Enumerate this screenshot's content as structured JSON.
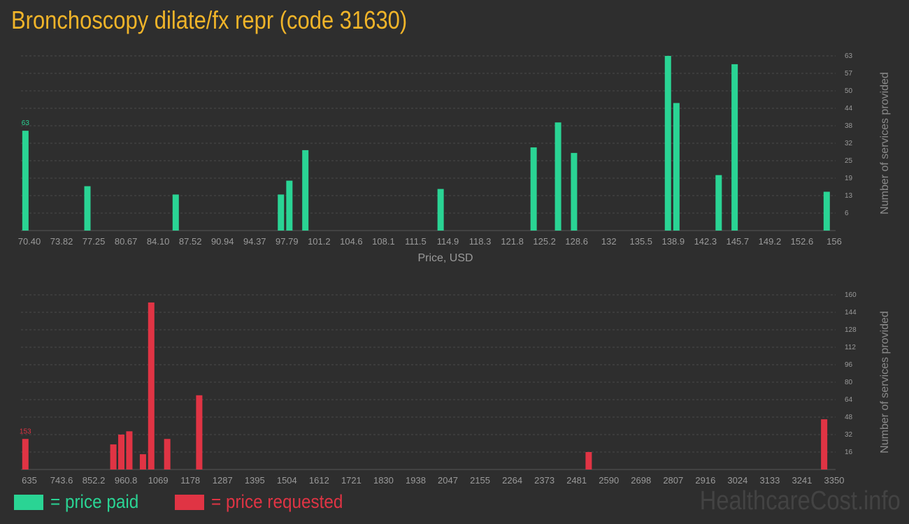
{
  "title": "Bronchoscopy dilate/fx repr (code 31630)",
  "legend": {
    "paid_label": "= price paid",
    "requested_label": "= price requested"
  },
  "watermark": "HealthcareCost.info",
  "colors": {
    "background": "#2e2e2e",
    "title": "#f0b429",
    "paid": "#2ad494",
    "requested": "#e03444",
    "axis_text": "#9a9a9a",
    "grid": "#4a4a4a"
  },
  "chart_data": [
    {
      "type": "bar",
      "series_name": "price paid",
      "color": "#2ad494",
      "xlabel": "Price, USD",
      "ylabel": "Number of services provided",
      "xlim": [
        70.4,
        156
      ],
      "ylim": [
        0,
        63
      ],
      "x_ticks": [
        "70.40",
        "73.82",
        "77.25",
        "80.67",
        "84.10",
        "87.52",
        "90.94",
        "94.37",
        "97.79",
        "101.2",
        "104.6",
        "108.1",
        "111.5",
        "114.9",
        "118.3",
        "121.8",
        "125.2",
        "128.6",
        "132",
        "135.5",
        "138.9",
        "142.3",
        "145.7",
        "149.2",
        "152.6",
        "156"
      ],
      "y_ticks": [
        "6",
        "13",
        "19",
        "25",
        "32",
        "38",
        "44",
        "50",
        "57",
        "63"
      ],
      "peak_label": "63",
      "points": [
        {
          "x": 70.5,
          "y": 36
        },
        {
          "x": 77.1,
          "y": 16
        },
        {
          "x": 86.5,
          "y": 13
        },
        {
          "x": 97.7,
          "y": 13
        },
        {
          "x": 98.6,
          "y": 18
        },
        {
          "x": 100.3,
          "y": 29
        },
        {
          "x": 114.7,
          "y": 15
        },
        {
          "x": 124.6,
          "y": 30
        },
        {
          "x": 127.2,
          "y": 39
        },
        {
          "x": 128.9,
          "y": 28
        },
        {
          "x": 138.9,
          "y": 63
        },
        {
          "x": 139.8,
          "y": 46
        },
        {
          "x": 144.3,
          "y": 20
        },
        {
          "x": 146.0,
          "y": 60
        },
        {
          "x": 155.8,
          "y": 14
        }
      ]
    },
    {
      "type": "bar",
      "series_name": "price requested",
      "color": "#e03444",
      "xlabel": "Price, USD",
      "ylabel": "Number of services provided",
      "xlim": [
        635,
        3350
      ],
      "ylim": [
        0,
        160
      ],
      "x_ticks": [
        "635",
        "743.6",
        "852.2",
        "960.8",
        "1069",
        "1178",
        "1287",
        "1395",
        "1504",
        "1612",
        "1721",
        "1830",
        "1938",
        "2047",
        "2155",
        "2264",
        "2373",
        "2481",
        "2590",
        "2698",
        "2807",
        "2916",
        "3024",
        "3133",
        "3241",
        "3350"
      ],
      "y_ticks": [
        "16",
        "32",
        "48",
        "64",
        "80",
        "96",
        "112",
        "128",
        "144",
        "160"
      ],
      "peak_label": "153",
      "points": [
        {
          "x": 638,
          "y": 28
        },
        {
          "x": 935,
          "y": 23
        },
        {
          "x": 962,
          "y": 32
        },
        {
          "x": 989,
          "y": 35
        },
        {
          "x": 1035,
          "y": 14
        },
        {
          "x": 1063,
          "y": 153
        },
        {
          "x": 1117,
          "y": 28
        },
        {
          "x": 1225,
          "y": 68
        },
        {
          "x": 2540,
          "y": 16
        },
        {
          "x": 3335,
          "y": 46
        }
      ]
    }
  ]
}
